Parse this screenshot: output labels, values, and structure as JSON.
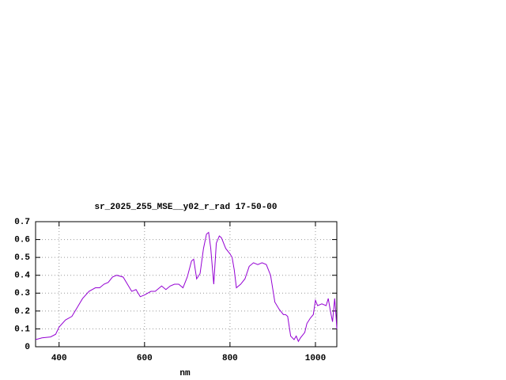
{
  "chart_data": {
    "type": "line",
    "title": "sr_2025_255_MSE__y02_r_rad 17-50-00",
    "xlabel": "nm",
    "x": [
      345,
      360,
      380,
      392,
      400,
      415,
      430,
      445,
      455,
      470,
      485,
      495,
      505,
      515,
      525,
      535,
      550,
      560,
      570,
      580,
      590,
      600,
      615,
      625,
      640,
      650,
      660,
      670,
      680,
      690,
      700,
      710,
      715,
      722,
      730,
      738,
      745,
      750,
      755,
      762,
      768,
      775,
      780,
      790,
      800,
      805,
      810,
      815,
      825,
      835,
      845,
      855,
      865,
      875,
      885,
      895,
      905,
      915,
      925,
      930,
      935,
      942,
      950,
      955,
      960,
      965,
      975,
      980,
      988,
      995,
      1000,
      1005,
      1015,
      1025,
      1030,
      1035,
      1040,
      1045,
      1048,
      1050
    ],
    "series": [
      {
        "color": "#9400d3",
        "values": [
          0.04,
          0.05,
          0.055,
          0.07,
          0.11,
          0.15,
          0.17,
          0.23,
          0.27,
          0.31,
          0.33,
          0.33,
          0.35,
          0.36,
          0.39,
          0.4,
          0.39,
          0.35,
          0.31,
          0.32,
          0.28,
          0.29,
          0.31,
          0.31,
          0.34,
          0.32,
          0.34,
          0.35,
          0.35,
          0.33,
          0.39,
          0.48,
          0.49,
          0.38,
          0.41,
          0.55,
          0.63,
          0.64,
          0.55,
          0.35,
          0.58,
          0.62,
          0.61,
          0.55,
          0.52,
          0.5,
          0.43,
          0.33,
          0.35,
          0.38,
          0.45,
          0.47,
          0.46,
          0.47,
          0.46,
          0.4,
          0.25,
          0.21,
          0.18,
          0.18,
          0.17,
          0.06,
          0.04,
          0.06,
          0.03,
          0.05,
          0.08,
          0.13,
          0.16,
          0.18,
          0.26,
          0.23,
          0.24,
          0.23,
          0.27,
          0.2,
          0.14,
          0.27,
          0.18,
          0.1
        ]
      }
    ],
    "xlim": [
      345,
      1050
    ],
    "xticks": [
      400,
      600,
      800,
      1000
    ],
    "ylim": [
      0,
      0.7
    ],
    "yticks": [
      0,
      0.1,
      0.2,
      0.3,
      0.4,
      0.5,
      0.6,
      0.7
    ],
    "grid": true
  }
}
